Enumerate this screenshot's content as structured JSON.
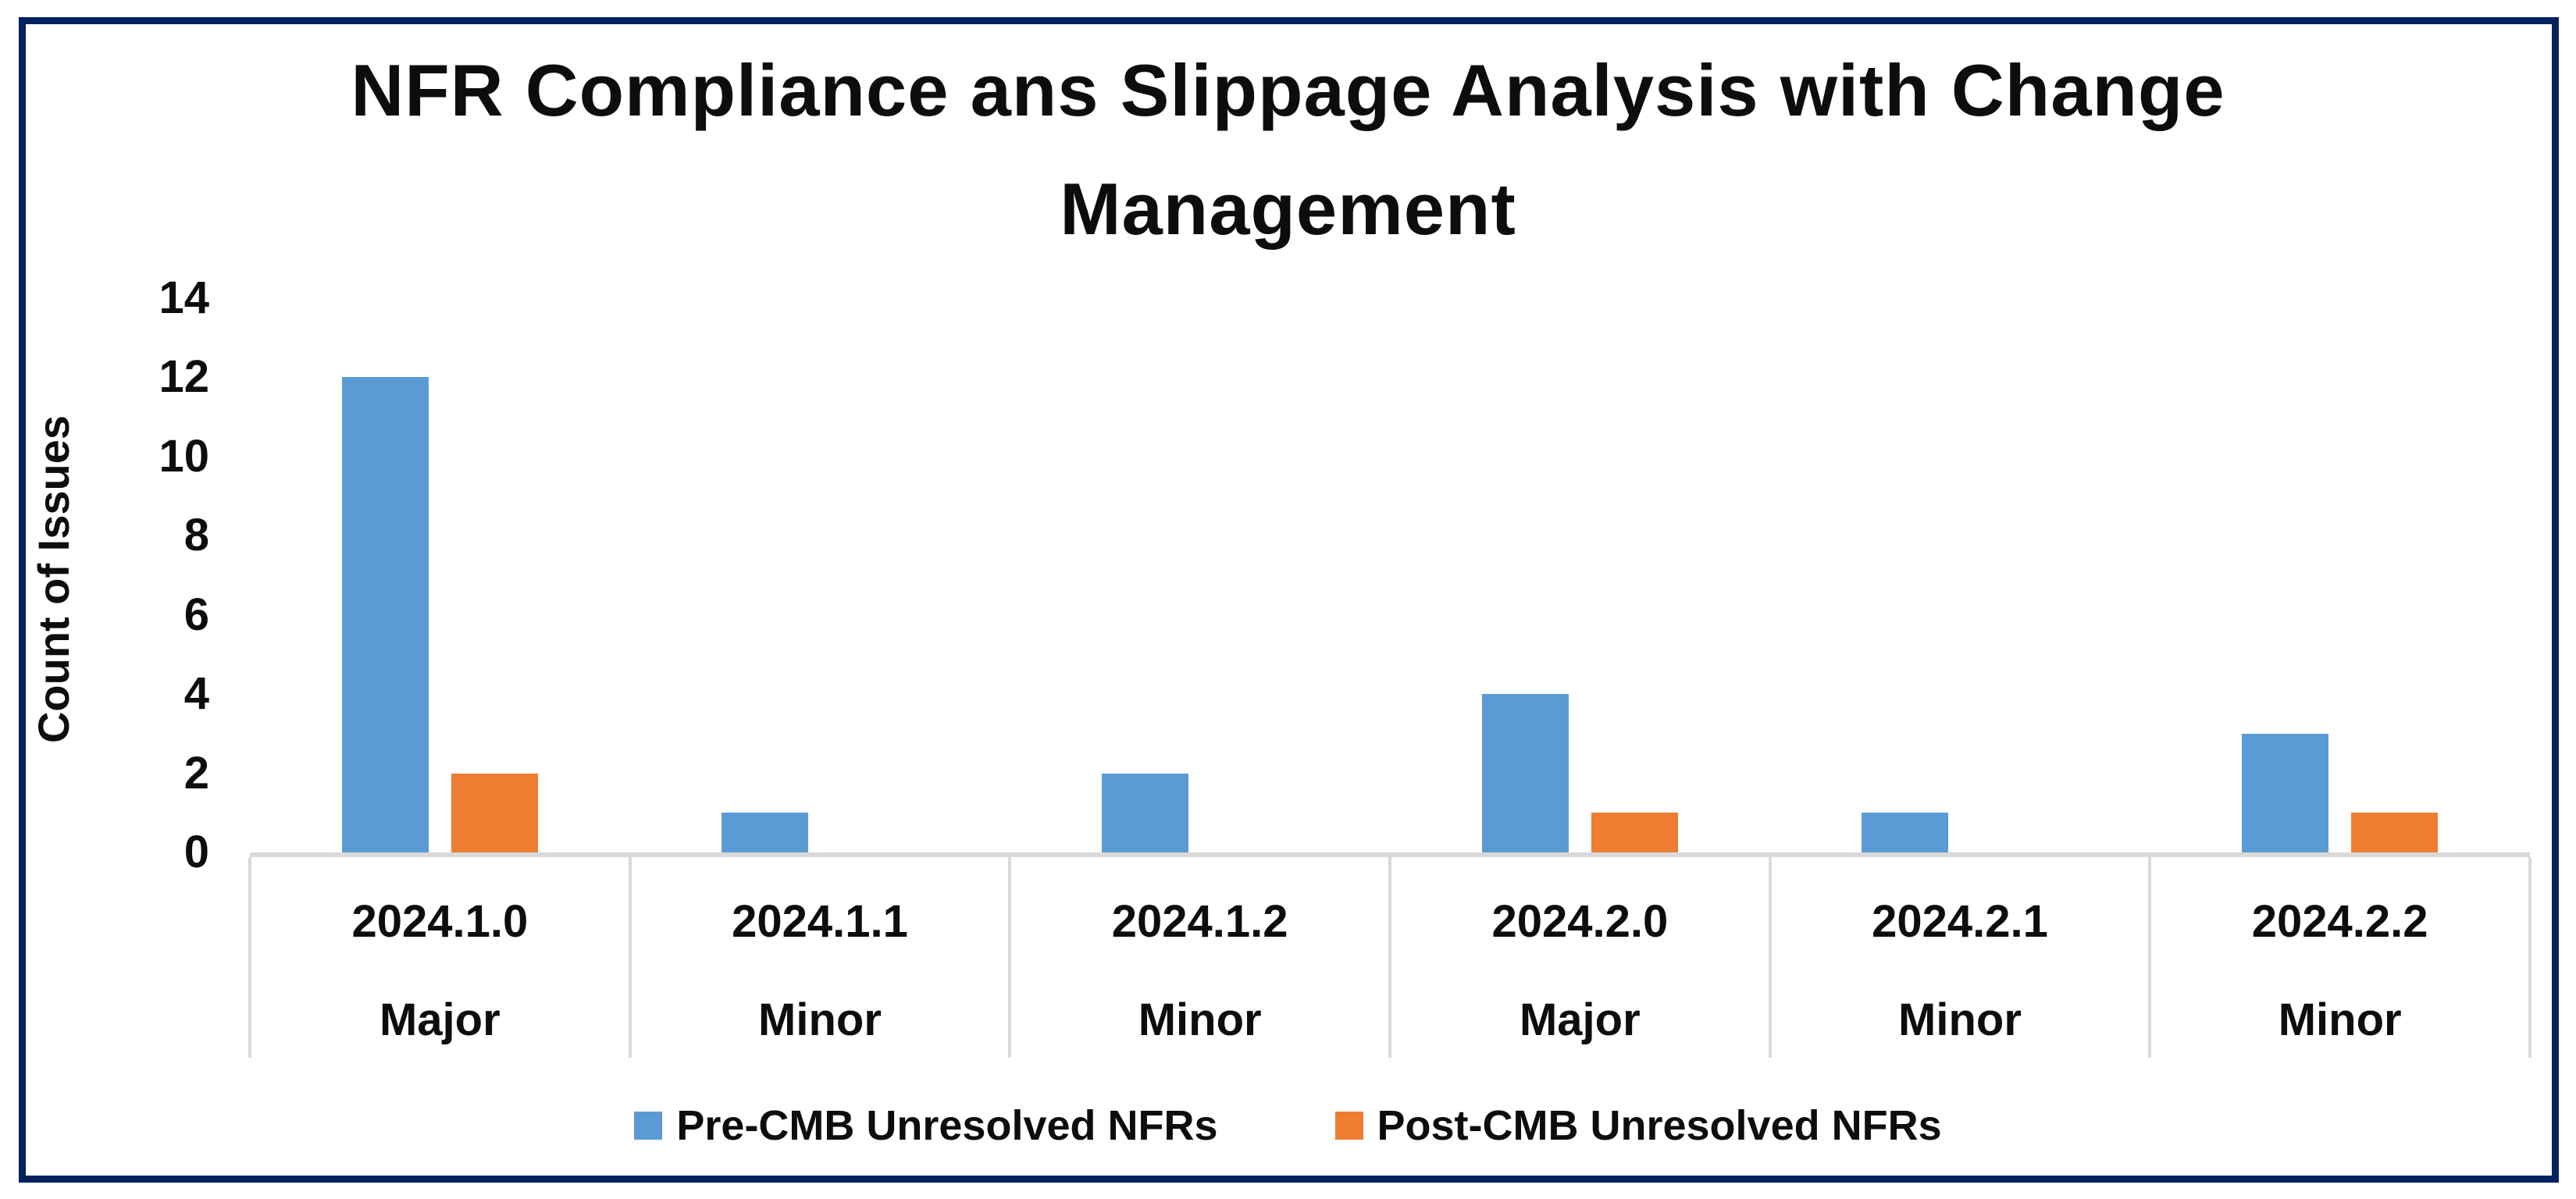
{
  "frame": {
    "border_color": "#02215F"
  },
  "chart_data": {
    "type": "bar",
    "title_lines": [
      "NFR Compliance ans Slippage Analysis with Change",
      "Management"
    ],
    "ylabel": "Count of Issues",
    "ylim": [
      0,
      14
    ],
    "yticks": [
      14,
      12,
      10,
      8,
      6,
      4,
      2,
      0
    ],
    "grid": false,
    "legend_position": "bottom",
    "axis_color": "#D9D9D9",
    "categories": [
      {
        "version": "2024.1.0",
        "release_type": "Major"
      },
      {
        "version": "2024.1.1",
        "release_type": "Minor"
      },
      {
        "version": "2024.1.2",
        "release_type": "Minor"
      },
      {
        "version": "2024.2.0",
        "release_type": "Major"
      },
      {
        "version": "2024.2.1",
        "release_type": "Minor"
      },
      {
        "version": "2024.2.2",
        "release_type": "Minor"
      }
    ],
    "series": [
      {
        "name": "Pre-CMB Unresolved NFRs",
        "color": "#5B9BD5",
        "values": [
          12,
          1,
          2,
          4,
          1,
          3
        ]
      },
      {
        "name": "Post-CMB Unresolved NFRs",
        "color": "#ED7D31",
        "values": [
          2,
          0,
          0,
          1,
          0,
          1
        ]
      }
    ]
  }
}
